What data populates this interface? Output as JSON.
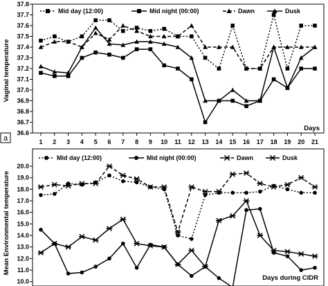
{
  "chart_data": [
    {
      "type": "line",
      "panel_tag": "a",
      "xlabel": "Days",
      "ylabel": "Vaginal temperature",
      "ylim": [
        36.6,
        37.8
      ],
      "ytick_step": 0.1,
      "yticks": [
        "36.6",
        "36.7",
        "36.8",
        "36.9",
        "37.0",
        "37.1",
        "37.2",
        "37.3",
        "37.4",
        "37.5",
        "37.6",
        "37.7",
        "37.8"
      ],
      "categories": [
        "1",
        "2",
        "3",
        "4",
        "5",
        "6",
        "7",
        "8",
        "9",
        "10",
        "11",
        "12",
        "13",
        "14",
        "15",
        "16",
        "17",
        "18",
        "19",
        "20",
        "21"
      ],
      "legend_position": "top",
      "series": [
        {
          "name": "Mid day (12:00)",
          "style": "dotted",
          "marker": "square",
          "values": [
            37.46,
            37.5,
            37.45,
            37.5,
            37.65,
            37.65,
            37.55,
            37.58,
            37.55,
            37.57,
            37.5,
            37.5,
            37.3,
            37.2,
            37.6,
            37.2,
            37.2,
            37.7,
            37.2,
            37.6,
            37.6
          ]
        },
        {
          "name": "Mid night (00:00)",
          "style": "solid",
          "marker": "square",
          "values": [
            37.16,
            37.13,
            37.13,
            37.3,
            37.35,
            37.33,
            37.3,
            37.38,
            37.38,
            37.23,
            37.2,
            37.1,
            36.7,
            36.9,
            36.9,
            36.85,
            36.9,
            37.1,
            37.02,
            37.2,
            37.2
          ]
        },
        {
          "name": "Dawn",
          "style": "dashed",
          "marker": "triangle",
          "values": [
            37.4,
            37.45,
            37.45,
            37.4,
            37.53,
            37.47,
            37.6,
            37.55,
            37.5,
            37.5,
            37.5,
            37.6,
            37.4,
            37.4,
            37.4,
            37.2,
            37.2,
            37.4,
            37.4,
            37.4,
            37.4
          ]
        },
        {
          "name": "Dusk",
          "style": "solid",
          "marker": "triangle",
          "values": [
            37.22,
            37.17,
            37.16,
            37.4,
            37.58,
            37.43,
            37.42,
            37.45,
            37.45,
            37.43,
            37.4,
            37.3,
            36.9,
            36.9,
            37.0,
            36.9,
            36.9,
            37.4,
            37.02,
            37.3,
            37.4
          ]
        }
      ]
    },
    {
      "type": "line",
      "xlabel": "Days during CIDR",
      "ylabel": "Mean Environmental temperature",
      "ylim": [
        10.0,
        20.0
      ],
      "ytick_step": 1,
      "yticks": [
        "10.0",
        "11.0",
        "12.0",
        "13.0",
        "14.0",
        "15.0",
        "16.0",
        "17.0",
        "18.0",
        "19.0",
        "20.0"
      ],
      "legend_position": "top",
      "series": [
        {
          "name": "Mid day (12:00)",
          "style": "dotted",
          "marker": "circle",
          "values": [
            17.5,
            17.6,
            18.5,
            18.4,
            18.6,
            19.2,
            18.7,
            18.6,
            18.2,
            18.0,
            14.0,
            13.7,
            17.5,
            17.7,
            17.7,
            17.7,
            17.8,
            18.3,
            18.0,
            17.7,
            17.7
          ]
        },
        {
          "name": "Mid night (00:00)",
          "style": "solid",
          "marker": "circle",
          "values": [
            14.5,
            13.3,
            10.7,
            10.8,
            11.3,
            12.0,
            13.3,
            11.2,
            13.2,
            13.0,
            11.5,
            10.5,
            11.3,
            10.3,
            9.5,
            16.2,
            16.3,
            12.5,
            12.2,
            11.0,
            11.2
          ]
        },
        {
          "name": "Dawn",
          "style": "dashed",
          "marker": "star",
          "values": [
            18.2,
            18.4,
            18.3,
            18.5,
            18.5,
            20.0,
            19.2,
            18.9,
            18.2,
            18.2,
            14.3,
            18.2,
            17.8,
            17.8,
            19.3,
            19.4,
            18.5,
            18.2,
            18.4,
            19.0,
            18.2
          ]
        },
        {
          "name": "Dusk",
          "style": "solid",
          "marker": "star",
          "values": [
            12.5,
            13.3,
            13.0,
            13.9,
            13.6,
            14.6,
            15.4,
            13.3,
            13.1,
            13.0,
            11.5,
            12.7,
            11.3,
            15.3,
            15.7,
            17.0,
            14.0,
            12.7,
            12.6,
            12.4,
            12.2
          ]
        }
      ]
    }
  ]
}
